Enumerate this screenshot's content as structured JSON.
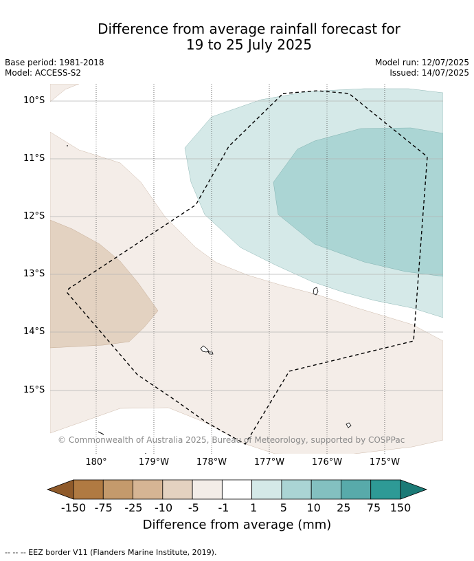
{
  "title": {
    "line1": "Difference from average rainfall forecast for",
    "line2": "19 to 25 July 2025"
  },
  "meta": {
    "base_period": "Base period: 1981-2018",
    "model": "Model: ACCESS-S2",
    "model_run": "Model run: 12/07/2025",
    "issued": "Issued: 14/07/2025"
  },
  "axes": {
    "lat_labels": [
      "10°S",
      "11°S",
      "12°S",
      "13°S",
      "14°S",
      "15°S"
    ],
    "lon_labels": [
      "180°",
      "179°W",
      "178°W",
      "177°W",
      "176°W",
      "175°W"
    ]
  },
  "copyright": "© Commonwealth of Australia 2025, Bureau of Meteorology, supported by COSPPac",
  "colorbar": {
    "ticks": [
      "-150",
      "-75",
      "-25",
      "-10",
      "-5",
      "-1",
      "1",
      "5",
      "10",
      "25",
      "75",
      "150"
    ],
    "colors": [
      "#8f5a2a",
      "#b07a42",
      "#c49a6c",
      "#d6b594",
      "#e4d2c0",
      "#f3ede8",
      "#ffffff",
      "#d4e9e8",
      "#aad4d4",
      "#83c0c0",
      "#58aaaa",
      "#2e9a96",
      "#1b7a76"
    ],
    "title": "Difference from average (mm)"
  },
  "footnote": "--  --  -- EEZ border V11 (Flanders Marine Institute, 2019)."
}
